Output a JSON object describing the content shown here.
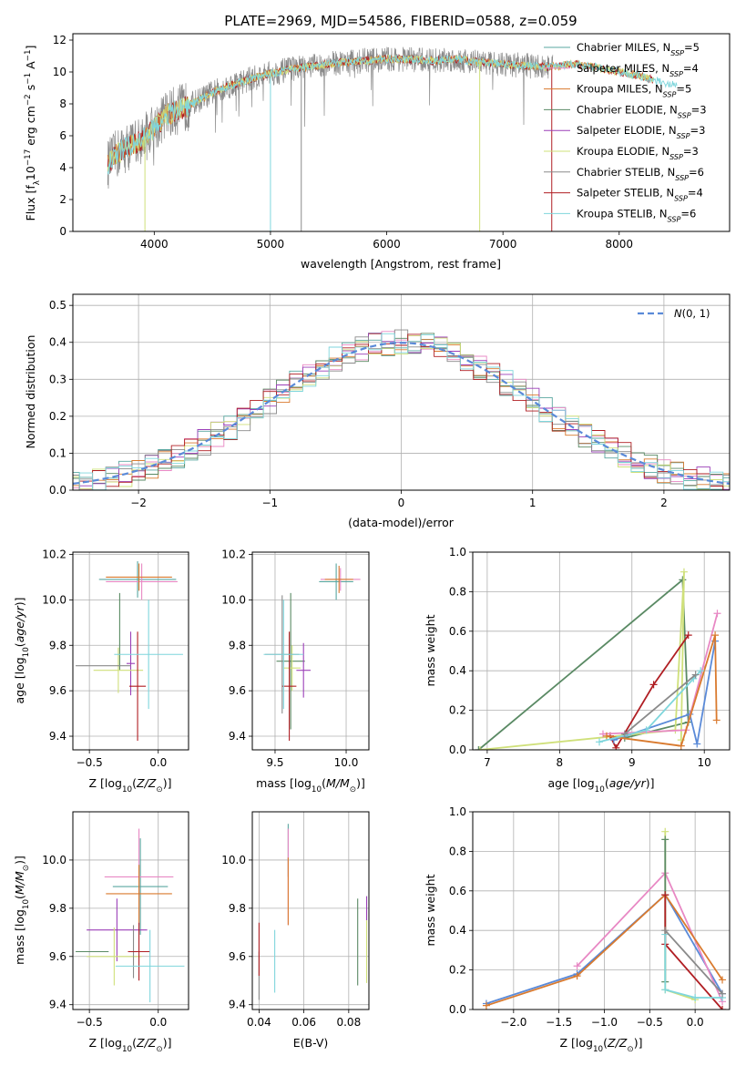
{
  "figure": {
    "title": "PLATE=2969, MJD=54586, FIBERID=0588, z=0.059"
  },
  "colors": {
    "chabrier_miles": "#5aa7a0",
    "salpeter_miles": "#e888c4",
    "kroupa_miles": "#d97a2e",
    "chabrier_elodie": "#5a8a64",
    "salpeter_elodie": "#9b3fb8",
    "kroupa_elodie": "#cfe07a",
    "chabrier_stelib": "#8a8a8a",
    "salpeter_stelib": "#b01e23",
    "kroupa_stelib": "#7fd6dc",
    "blue": "#5a8ad8"
  },
  "chart_data": [
    {
      "id": "spectrum",
      "type": "line",
      "xlabel": "wavelength [Angstrom, rest frame]",
      "ylabel": "Flux [f_λ10^-17 erg cm^-2 s^-1 A^-1]",
      "xlim": [
        3300,
        8950
      ],
      "ylim": [
        0,
        12.4
      ],
      "xticks": [
        4000,
        5000,
        6000,
        7000,
        8000
      ],
      "yticks": [
        0,
        2,
        4,
        6,
        8,
        10,
        12
      ],
      "grid": false,
      "legend_position": "right",
      "series": [
        {
          "name": "Chabrier MILES, N_SSP=5"
        },
        {
          "name": "Salpeter MILES, N_SSP=4"
        },
        {
          "name": "Kroupa MILES, N_SSP=5"
        },
        {
          "name": "Chabrier ELODIE, N_SSP=3"
        },
        {
          "name": "Salpeter ELODIE, N_SSP=3"
        },
        {
          "name": "Kroupa ELODIE, N_SSP=3"
        },
        {
          "name": "Chabrier STELIB, N_SSP=6"
        },
        {
          "name": "Salpeter STELIB, N_SSP=4"
        },
        {
          "name": "Kroupa STELIB, N_SSP=6"
        }
      ],
      "continuum": {
        "x": [
          3600,
          3700,
          3800,
          3900,
          4000,
          4100,
          4200,
          4300,
          4400,
          4500,
          4600,
          4800,
          5000,
          5200,
          5400,
          5600,
          5800,
          6000,
          6200,
          6400,
          6600,
          6800,
          7000,
          7200,
          7400,
          7600,
          7800,
          8000,
          8200,
          8400,
          8600
        ],
        "y": [
          4.2,
          5.0,
          5.4,
          5.8,
          6.5,
          7.3,
          7.6,
          7.9,
          8.3,
          8.7,
          9.0,
          9.5,
          9.9,
          10.2,
          10.4,
          10.6,
          10.7,
          10.8,
          10.8,
          10.7,
          10.8,
          10.6,
          10.5,
          10.4,
          10.3,
          10.5,
          10.3,
          10.0,
          9.7,
          9.3,
          9.0
        ]
      }
    },
    {
      "id": "residuals",
      "type": "bar",
      "xlabel": "(data-model)/error",
      "ylabel": "Normed distribution",
      "xlim": [
        -2.5,
        2.5
      ],
      "ylim": [
        0,
        0.53
      ],
      "xticks": [
        -2,
        -1,
        0,
        1,
        2
      ],
      "yticks": [
        0.0,
        0.1,
        0.2,
        0.3,
        0.4,
        0.5
      ],
      "grid": true,
      "legend": "N(0,1)",
      "legend_position": "top-right"
    },
    {
      "id": "age_vs_Z",
      "type": "scatter",
      "xlabel": "Z [log10(Z/Z⊙)]",
      "ylabel": "age  [log10(age/yr)]",
      "xlim": [
        -0.62,
        0.22
      ],
      "ylim": [
        9.34,
        10.21
      ],
      "xticks": [
        -0.5,
        0.0
      ],
      "yticks": [
        9.4,
        9.6,
        9.8,
        10.0,
        10.2
      ],
      "grid": true
    },
    {
      "id": "age_vs_mass",
      "type": "scatter",
      "xlabel": "mass [log10(M/M⊙)]",
      "xlim": [
        9.34,
        10.16
      ],
      "ylim": [
        9.34,
        10.21
      ],
      "xticks": [
        9.5,
        10.0
      ],
      "yticks": [
        9.4,
        9.6,
        9.8,
        10.0,
        10.2
      ],
      "grid": true
    },
    {
      "id": "weight_vs_age",
      "type": "line",
      "xlabel": "age  [log10(age/yr)]",
      "ylabel": "mass weight",
      "xlim": [
        6.8,
        10.35
      ],
      "ylim": [
        0,
        1
      ],
      "xticks": [
        7,
        8,
        9,
        10
      ],
      "yticks": [
        0.0,
        0.2,
        0.4,
        0.6,
        0.8,
        1.0
      ],
      "grid": true
    },
    {
      "id": "mass_vs_Z",
      "type": "scatter",
      "xlabel": "Z [log10(Z/Z⊙)]",
      "ylabel": "mass [log10(M/M⊙)]",
      "xlim": [
        -0.62,
        0.22
      ],
      "ylim": [
        9.38,
        10.2
      ],
      "xticks": [
        -0.5,
        0.0
      ],
      "yticks": [
        9.4,
        9.6,
        9.8,
        10.0
      ],
      "grid": true
    },
    {
      "id": "mass_vs_ebv",
      "type": "scatter",
      "xlabel": "E(B-V)",
      "xlim": [
        0.037,
        0.089
      ],
      "ylim": [
        9.38,
        10.2
      ],
      "xticks": [
        0.04,
        0.06,
        0.08
      ],
      "yticks": [
        9.4,
        9.6,
        9.8,
        10.0
      ],
      "grid": true
    },
    {
      "id": "weight_vs_Z",
      "type": "line",
      "xlabel": "Z [log10(Z/Z⊙)]",
      "ylabel": "mass weight",
      "xlim": [
        -2.45,
        0.38
      ],
      "ylim": [
        0,
        1
      ],
      "xticks": [
        -2.0,
        -1.5,
        -1.0,
        -0.5,
        0.0
      ],
      "yticks": [
        0.0,
        0.2,
        0.4,
        0.6,
        0.8,
        1.0
      ],
      "grid": true
    }
  ]
}
